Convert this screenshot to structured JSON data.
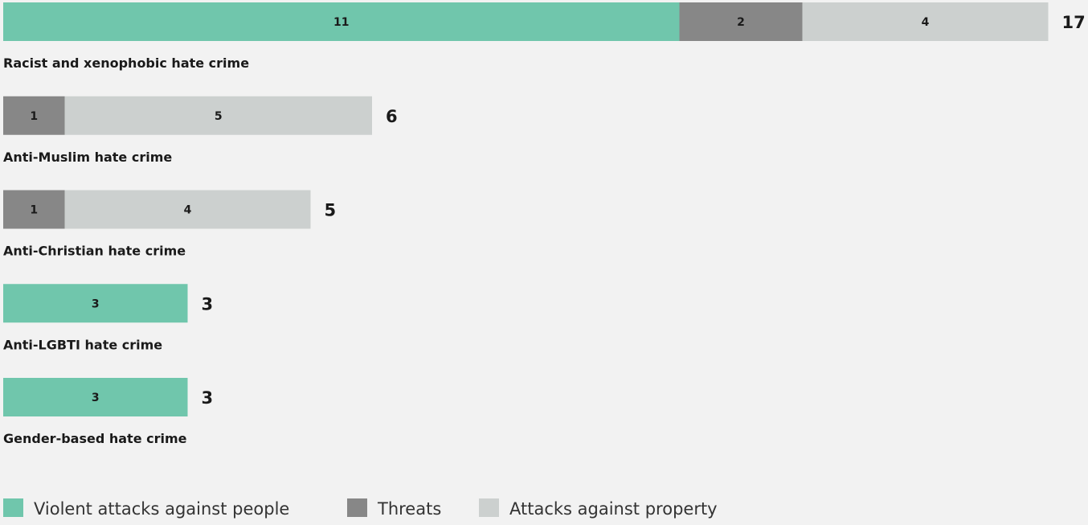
{
  "chart_data": {
    "type": "bar",
    "orientation": "horizontal",
    "stacked": true,
    "title": "",
    "xlabel": "",
    "ylabel": "",
    "grid": false,
    "legend_position": "bottom",
    "categories": [
      "Racist and xenophobic hate crime",
      "Anti-Muslim hate crime",
      "Anti-Christian hate crime",
      "Anti-LGBTI hate crime",
      "Gender-based hate crime"
    ],
    "series": [
      {
        "name": "Violent attacks against people",
        "color": "#70c6ac",
        "values": [
          11,
          0,
          0,
          3,
          3
        ]
      },
      {
        "name": "Threats",
        "color": "#878787",
        "values": [
          2,
          1,
          1,
          0,
          0
        ]
      },
      {
        "name": "Attacks against property",
        "color": "#ccd0cf",
        "values": [
          4,
          5,
          4,
          0,
          0
        ]
      }
    ],
    "totals": [
      17,
      6,
      5,
      3,
      3
    ]
  }
}
